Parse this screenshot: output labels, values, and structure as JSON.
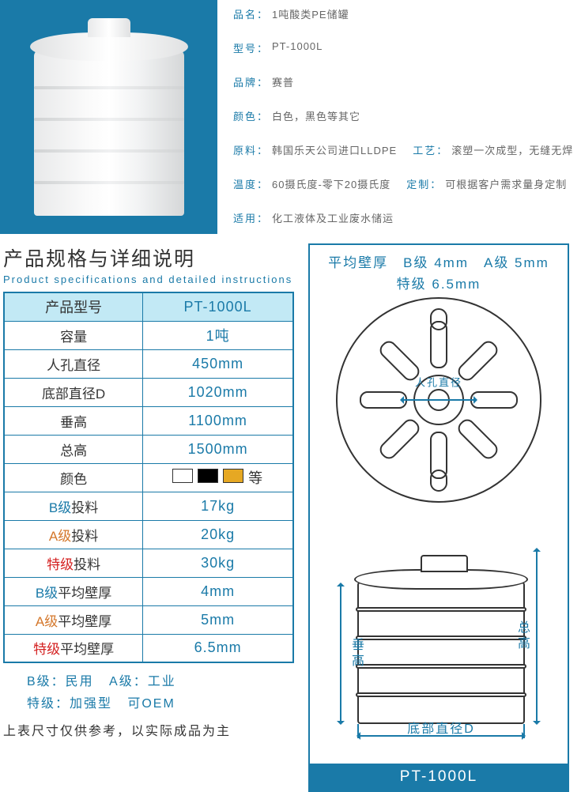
{
  "colors": {
    "brand": "#1a7aa8",
    "swatch1": "#ffffff",
    "swatch2": "#000000",
    "swatch3": "#e6a823"
  },
  "info": {
    "name_label": "品名：",
    "name": "1吨酸类PE储罐",
    "model_label": "型号：",
    "model": "PT-1000L",
    "brand_label": "品牌：",
    "brand": "赛普",
    "color_label": "颜色：",
    "color": "白色，黑色等其它",
    "material_label": "原料：",
    "material": "韩国乐天公司进口LLDPE",
    "process_label": "工艺：",
    "process": "滚塑一次成型，无缝无焊",
    "temp_label": "温度：",
    "temp": "60摄氏度-零下20摄氏度",
    "custom_label": "定制：",
    "custom": "可根据客户需求量身定制",
    "apply_label": "适用：",
    "apply": "化工液体及工业废水储运"
  },
  "section": {
    "title_cn": "产品规格与详细说明",
    "title_en": "Product specifications and detailed instructions"
  },
  "spec": {
    "rows": [
      {
        "k": "产品型号",
        "v": "PT-1000L",
        "hdr": true
      },
      {
        "k": "容量",
        "v": "1吨"
      },
      {
        "k": "人孔直径",
        "v": "450mm"
      },
      {
        "k": "底部直径D",
        "v": "1020mm"
      },
      {
        "k": "垂高",
        "v": "1100mm"
      },
      {
        "k": "总高",
        "v": "1500mm"
      },
      {
        "k": "颜色",
        "v_colors": true,
        "v_tail": "等"
      },
      {
        "k_grade": "B级",
        "k_tail": "投料",
        "grade": "b",
        "v": "17kg"
      },
      {
        "k_grade": "A级",
        "k_tail": "投料",
        "grade": "a",
        "v": "20kg"
      },
      {
        "k_grade": "特级",
        "k_tail": "投料",
        "grade": "s",
        "v": "30kg"
      },
      {
        "k_grade": "B级",
        "k_tail": "平均壁厚",
        "grade": "b",
        "v": "4mm"
      },
      {
        "k_grade": "A级",
        "k_tail": "平均壁厚",
        "grade": "a",
        "v": "5mm"
      },
      {
        "k_grade": "特级",
        "k_tail": "平均壁厚",
        "grade": "s",
        "v": "6.5mm"
      }
    ]
  },
  "legend": {
    "line1_a": "B级：民用",
    "line1_b": "A级：工业",
    "line2_a": "特级：加强型",
    "line2_b": "可OEM"
  },
  "note": "上表尺寸仅供参考，以实际成品为主",
  "diagram": {
    "wall_line1": "平均壁厚　B级 4mm　A级 5mm",
    "wall_line2": "特级 6.5mm",
    "manhole_label": "人孔直径",
    "h1_label": "垂高",
    "h2_label": "总高",
    "bottom_d_label": "底部直径D",
    "model_foot": "PT-1000L"
  }
}
